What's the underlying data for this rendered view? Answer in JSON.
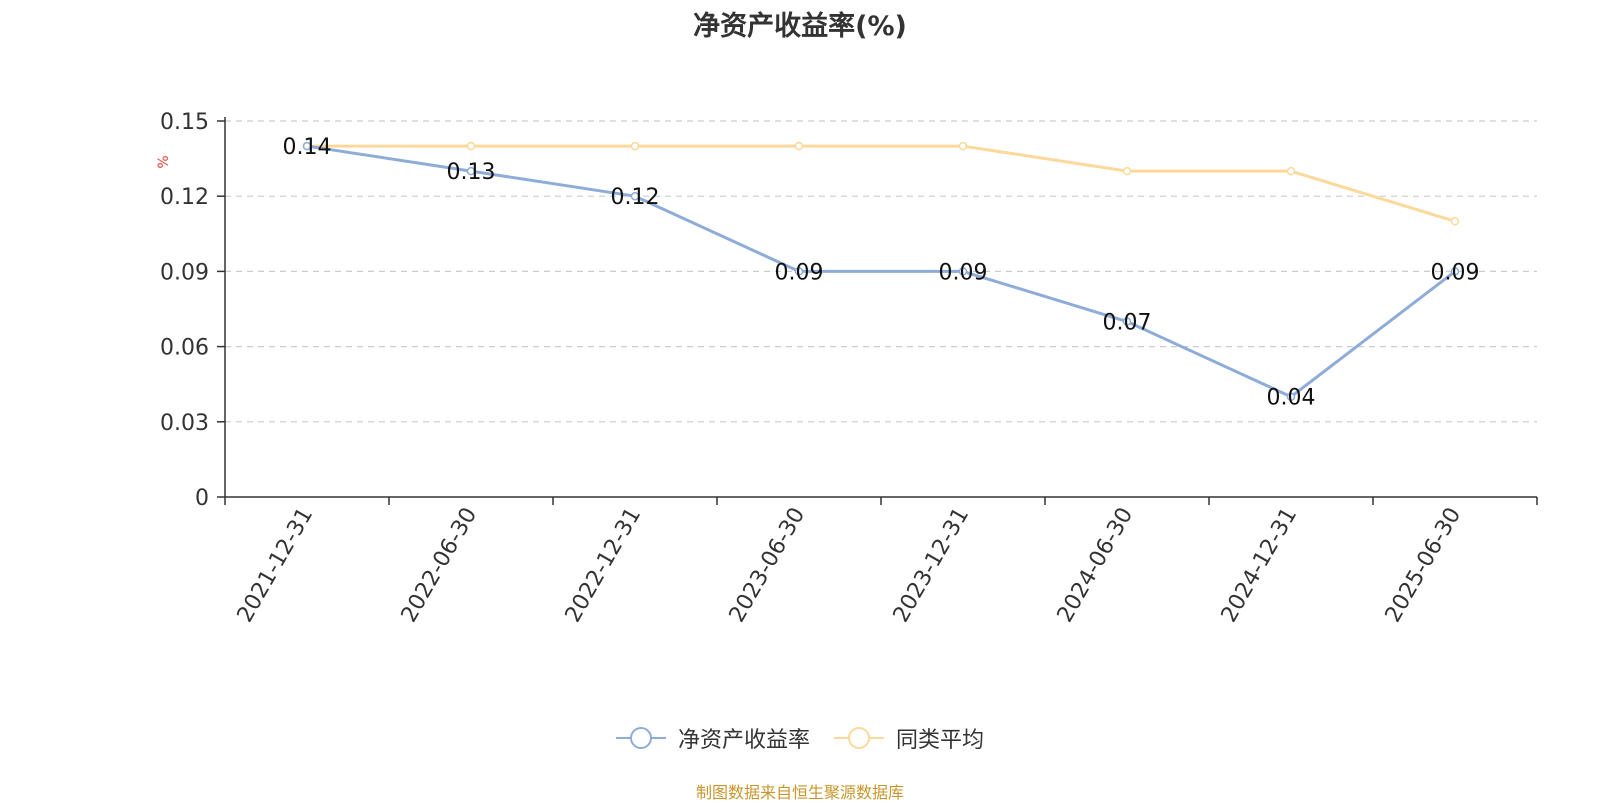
{
  "chart_data": {
    "type": "line",
    "title": "净资产收益率(%)",
    "ylabel": "%",
    "xlabel": "",
    "categories": [
      "2021-12-31",
      "2022-06-30",
      "2022-12-31",
      "2023-06-30",
      "2023-12-31",
      "2024-06-30",
      "2024-12-31",
      "2025-06-30"
    ],
    "ylim": [
      0,
      0.15
    ],
    "yticks": [
      "0",
      "0.03",
      "0.06",
      "0.09",
      "0.12",
      "0.15"
    ],
    "grid": true,
    "legend_position": "bottom",
    "series": [
      {
        "name": "净资产收益率",
        "color": "#8eacd8",
        "values": [
          0.14,
          0.13,
          0.12,
          0.09,
          0.09,
          0.07,
          0.04,
          0.09
        ],
        "labels": [
          "0.14",
          "0.13",
          "0.12",
          "0.09",
          "0.09",
          "0.07",
          "0.04",
          "0.09"
        ]
      },
      {
        "name": "同类平均",
        "color": "#fcd99a",
        "values": [
          0.14,
          0.14,
          0.14,
          0.14,
          0.14,
          0.13,
          0.13,
          0.11
        ]
      }
    ]
  },
  "legend": {
    "items": [
      {
        "label": "净资产收益率",
        "color": "#8eacd8"
      },
      {
        "label": "同类平均",
        "color": "#fcd99a"
      }
    ]
  },
  "footer": {
    "source": "制图数据来自恒生聚源数据库"
  }
}
